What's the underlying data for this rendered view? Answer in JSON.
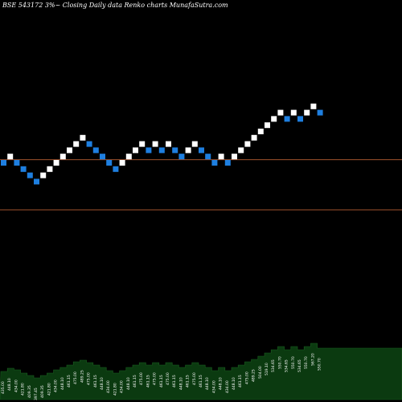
{
  "header": {
    "text": "BSE 543172  3%~  Closing Daily data  Renko  charts MunafaSutra.com"
  },
  "colors": {
    "background": "#000000",
    "up_brick": "#ffffff",
    "down_brick": "#1e7fe0",
    "level_line": "#a0522d",
    "volume_fill": "#0b3a10",
    "volume_edge": "#1b5e20"
  },
  "chart_data": [
    {
      "type": "renko",
      "title": "BSE 543172  3%~  Closing Daily data  Renko  charts MunafaSutra.com",
      "grid": false,
      "horizontal_lines": [
        1.5,
        9.5
      ],
      "bricks": [
        {
          "dir": "down",
          "level": 9
        },
        {
          "dir": "up",
          "level": 10
        },
        {
          "dir": "down",
          "level": 9
        },
        {
          "dir": "down",
          "level": 8
        },
        {
          "dir": "down",
          "level": 7
        },
        {
          "dir": "down",
          "level": 6
        },
        {
          "dir": "up",
          "level": 7
        },
        {
          "dir": "up",
          "level": 8
        },
        {
          "dir": "up",
          "level": 9
        },
        {
          "dir": "up",
          "level": 10
        },
        {
          "dir": "up",
          "level": 11
        },
        {
          "dir": "up",
          "level": 12
        },
        {
          "dir": "up",
          "level": 13
        },
        {
          "dir": "down",
          "level": 12
        },
        {
          "dir": "down",
          "level": 11
        },
        {
          "dir": "down",
          "level": 10
        },
        {
          "dir": "down",
          "level": 9
        },
        {
          "dir": "down",
          "level": 8
        },
        {
          "dir": "up",
          "level": 9
        },
        {
          "dir": "up",
          "level": 10
        },
        {
          "dir": "up",
          "level": 11
        },
        {
          "dir": "up",
          "level": 12
        },
        {
          "dir": "down",
          "level": 11
        },
        {
          "dir": "up",
          "level": 12
        },
        {
          "dir": "down",
          "level": 11
        },
        {
          "dir": "up",
          "level": 12
        },
        {
          "dir": "down",
          "level": 11
        },
        {
          "dir": "down",
          "level": 10
        },
        {
          "dir": "up",
          "level": 11
        },
        {
          "dir": "up",
          "level": 12
        },
        {
          "dir": "down",
          "level": 11
        },
        {
          "dir": "down",
          "level": 10
        },
        {
          "dir": "down",
          "level": 9
        },
        {
          "dir": "up",
          "level": 10
        },
        {
          "dir": "down",
          "level": 9
        },
        {
          "dir": "up",
          "level": 10
        },
        {
          "dir": "up",
          "level": 11
        },
        {
          "dir": "up",
          "level": 12
        },
        {
          "dir": "up",
          "level": 13
        },
        {
          "dir": "up",
          "level": 14
        },
        {
          "dir": "up",
          "level": 15
        },
        {
          "dir": "up",
          "level": 16
        },
        {
          "dir": "up",
          "level": 17
        },
        {
          "dir": "down",
          "level": 16
        },
        {
          "dir": "up",
          "level": 17
        },
        {
          "dir": "down",
          "level": 16
        },
        {
          "dir": "up",
          "level": 17
        },
        {
          "dir": "up",
          "level": 18
        },
        {
          "dir": "down",
          "level": 17
        }
      ],
      "volume": {
        "values": [
          35,
          39,
          37,
          33,
          30,
          27,
          30,
          33,
          37,
          40,
          43,
          47,
          49,
          46,
          43,
          40,
          36,
          33,
          36,
          40,
          43,
          46,
          43,
          46,
          43,
          46,
          43,
          40,
          43,
          46,
          43,
          40,
          36,
          40,
          36,
          40,
          43,
          47,
          50,
          54,
          58,
          62,
          66,
          62,
          66,
          62,
          66,
          70,
          64
        ],
        "labels": [
          "435.00",
          "448.10",
          "434.00",
          "421.80",
          "409.35",
          "397.45",
          "409.35",
          "421.80",
          "434.00",
          "448.10",
          "461.15",
          "475.00",
          "489.25",
          "475.00",
          "461.15",
          "448.10",
          "434.00",
          "421.80",
          "434.00",
          "448.10",
          "461.15",
          "475.00",
          "461.15",
          "475.00",
          "461.15",
          "475.00",
          "461.15",
          "448.10",
          "461.15",
          "475.00",
          "461.15",
          "448.10",
          "434.00",
          "448.10",
          "434.00",
          "448.10",
          "461.15",
          "475.00",
          "489.25",
          "504.00",
          "519.10",
          "534.65",
          "550.70",
          "534.65",
          "550.70",
          "534.65",
          "550.70",
          "567.20",
          "550.70"
        ]
      }
    }
  ]
}
